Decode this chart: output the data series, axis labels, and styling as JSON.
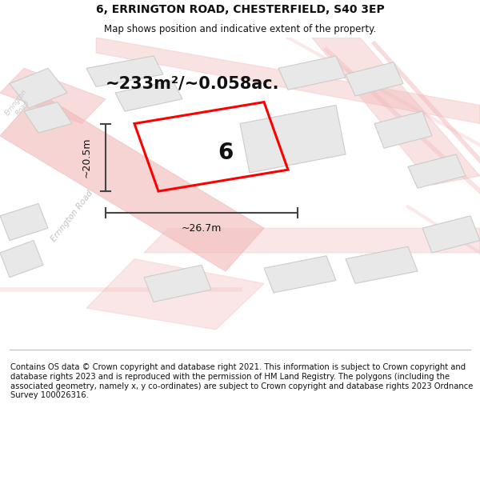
{
  "title": "6, ERRINGTON ROAD, CHESTERFIELD, S40 3EP",
  "subtitle": "Map shows position and indicative extent of the property.",
  "footer": "Contains OS data © Crown copyright and database right 2021. This information is subject to Crown copyright and database rights 2023 and is reproduced with the permission of HM Land Registry. The polygons (including the associated geometry, namely x, y co-ordinates) are subject to Crown copyright and database rights 2023 Ordnance Survey 100026316.",
  "area_label": "~233m²/~0.058ac.",
  "plot_number": "6",
  "dim_height": "~20.5m",
  "dim_width": "~26.7m",
  "bg_color": "#ffffff",
  "road_color": "#f2b8b8",
  "building_fill": "#e8e8e8",
  "building_edge": "#cccccc",
  "plot_color": "#ff0000",
  "dim_color": "#444444",
  "title_fontsize": 10,
  "subtitle_fontsize": 8.5,
  "footer_fontsize": 7.2,
  "area_fontsize": 15,
  "plot_num_fontsize": 20
}
